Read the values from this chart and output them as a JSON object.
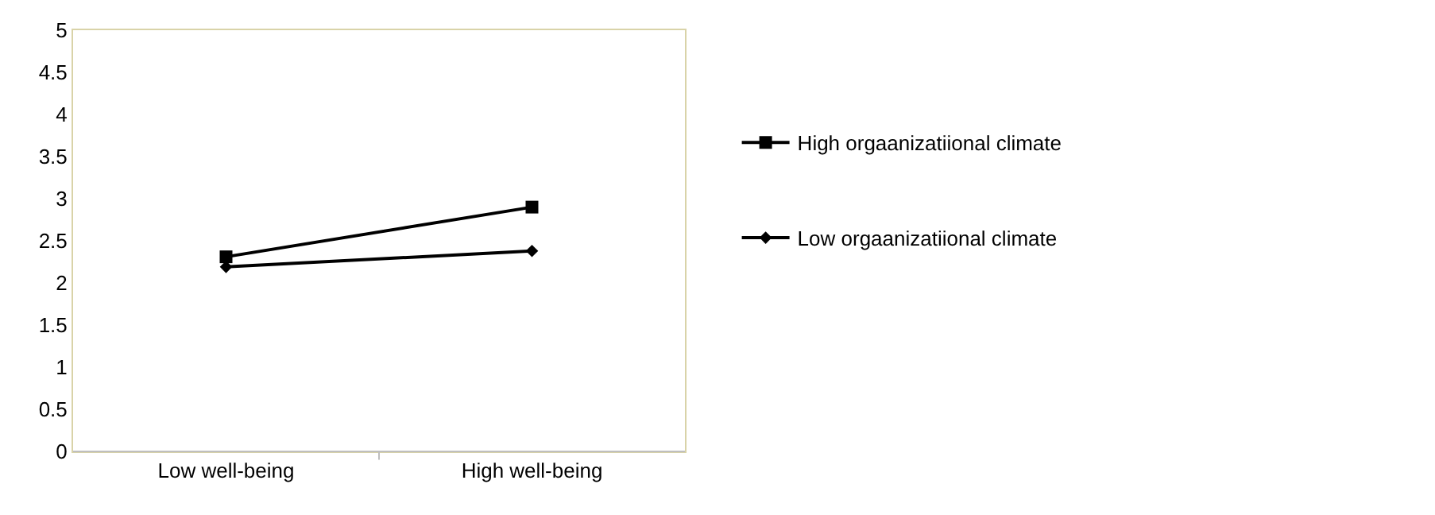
{
  "chart_data": {
    "type": "line",
    "categories": [
      "Low well-being",
      "High well-being"
    ],
    "series": [
      {
        "name": "High orgaanizatiional climate",
        "color": "#000000",
        "marker": "square",
        "values": [
          2.31,
          2.9
        ]
      },
      {
        "name": "Low orgaanizatiional climate",
        "color": "#000000",
        "marker": "diamond",
        "values": [
          2.19,
          2.38
        ]
      }
    ],
    "ylim": [
      0,
      5
    ],
    "yticks": [
      0,
      0.5,
      1,
      1.5,
      2,
      2.5,
      3,
      3.5,
      4,
      4.5,
      5
    ],
    "legend": "right",
    "line_style": "solid"
  }
}
